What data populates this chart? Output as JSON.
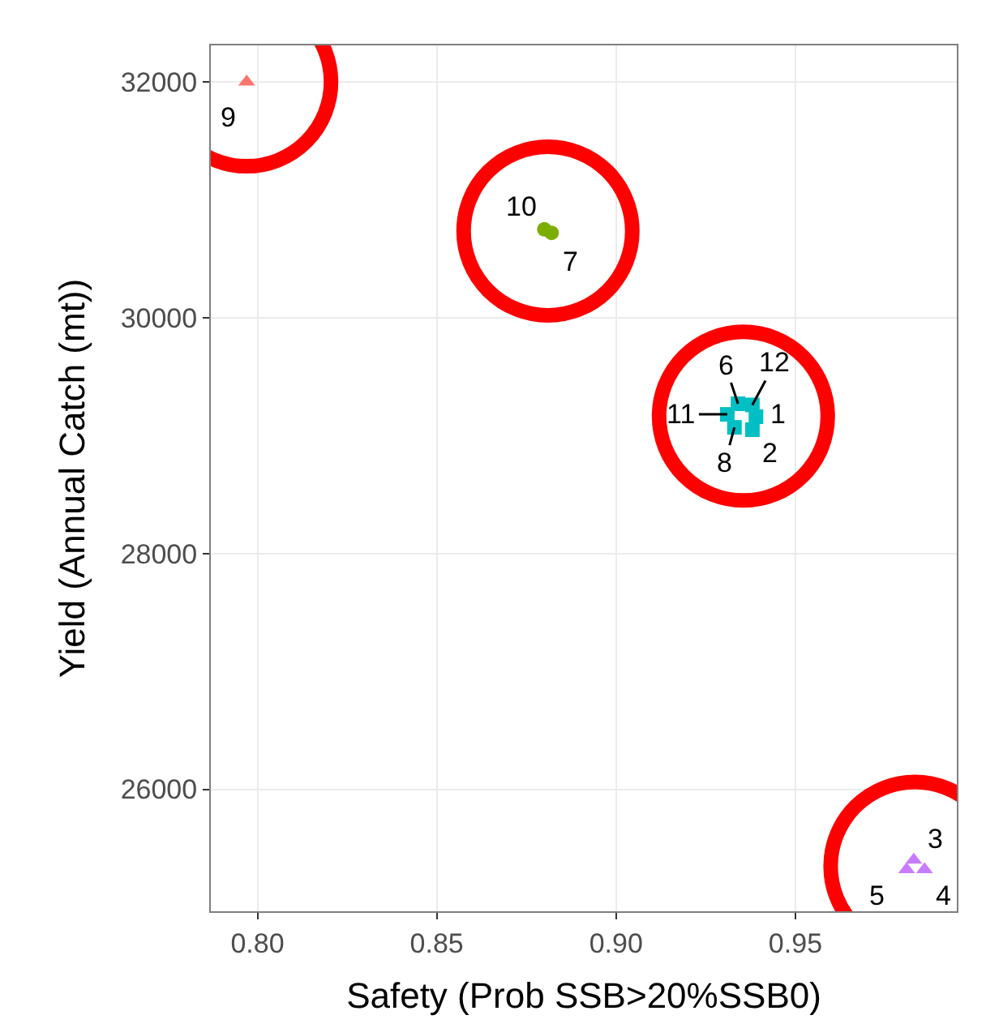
{
  "chart_data": {
    "type": "scatter",
    "xlabel": "Safety (Prob SSB>20%SSB0)",
    "ylabel": "Yield (Annual Catch (mt))",
    "xlim": [
      0.787,
      0.995
    ],
    "xticks": [
      {
        "value": 0.8,
        "label": "0.80"
      },
      0.85,
      {
        "value": 0.9,
        "label": "0.90"
      },
      0.95
    ],
    "ylim": [
      24965,
      32310
    ],
    "yticks": [
      26000,
      28000,
      30000,
      32000
    ],
    "grid": true,
    "series": [
      {
        "color": "#f8766d",
        "marker": "triangle",
        "x": [
          0.797
        ],
        "values": [
          32000
        ]
      },
      {
        "color": "#7cae00",
        "marker": "circle",
        "x": [
          0.88,
          0.882
        ],
        "values": [
          30750,
          30720
        ]
      },
      {
        "color": "#00bfc4",
        "marker": "square",
        "x": [
          0.939,
          0.938,
          0.934,
          0.933,
          0.931,
          0.938
        ],
        "values": [
          29160,
          29050,
          29270,
          29070,
          29180,
          29260
        ]
      },
      {
        "color": "#c77cff",
        "marker": "triangle",
        "x": [
          0.983,
          0.986,
          0.981
        ],
        "values": [
          25400,
          25320,
          25320
        ]
      }
    ],
    "annotations": [
      {
        "text": "9",
        "x": 0.797,
        "y": 32000
      },
      {
        "text": "10",
        "x": 0.88,
        "y": 30750
      },
      {
        "text": "7",
        "x": 0.882,
        "y": 30720
      },
      {
        "text": "6",
        "x": 0.934,
        "y": 29270
      },
      {
        "text": "12",
        "x": 0.938,
        "y": 29260
      },
      {
        "text": "11",
        "x": 0.931,
        "y": 29180
      },
      {
        "text": "1",
        "x": 0.939,
        "y": 29160
      },
      {
        "text": "8",
        "x": 0.933,
        "y": 29070
      },
      {
        "text": "2",
        "x": 0.938,
        "y": 29050
      },
      {
        "text": "3",
        "x": 0.983,
        "y": 25400
      },
      {
        "text": "4",
        "x": 0.986,
        "y": 25320
      },
      {
        "text": "5",
        "x": 0.981,
        "y": 25320
      }
    ]
  }
}
